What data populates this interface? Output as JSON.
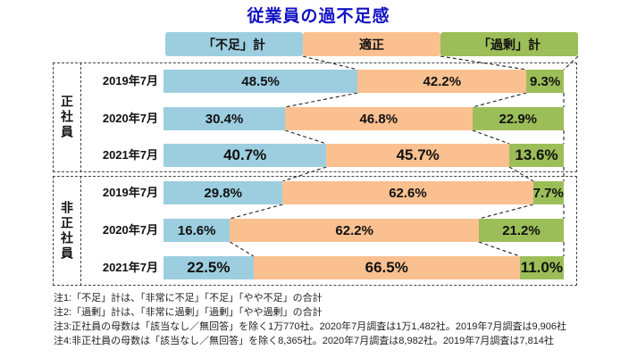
{
  "title": "従業員の過不足感",
  "colors": {
    "shortage": "#9CCEDF",
    "appropriate": "#FAC090",
    "surplus": "#9CBE58",
    "title_text": "#1212C4",
    "connector_line": "#222222"
  },
  "legend": [
    {
      "label": "「不足」計",
      "key": "shortage"
    },
    {
      "label": "適正",
      "key": "appropriate"
    },
    {
      "label": "「過剰」計",
      "key": "surplus"
    }
  ],
  "chart_data": {
    "type": "bar",
    "stacked": true,
    "orientation": "horizontal",
    "unit": "%",
    "xlim": [
      0,
      100
    ],
    "series": [
      "「不足」計",
      "適正",
      "「過剰」計"
    ],
    "title": "従業員の過不足感",
    "groups": [
      {
        "label": "正社員",
        "rows": [
          {
            "label": "2019年7月",
            "values": [
              48.5,
              42.2,
              9.3
            ],
            "value_labels": [
              "48.5%",
              "42.2%",
              "9.3%"
            ],
            "emphasis": false
          },
          {
            "label": "2020年7月",
            "values": [
              30.4,
              46.8,
              22.9
            ],
            "value_labels": [
              "30.4%",
              "46.8%",
              "22.9%"
            ],
            "emphasis": false
          },
          {
            "label": "2021年7月",
            "values": [
              40.7,
              45.7,
              13.6
            ],
            "value_labels": [
              "40.7%",
              "45.7%",
              "13.6%"
            ],
            "emphasis": true
          }
        ]
      },
      {
        "label": "非正社員",
        "rows": [
          {
            "label": "2019年7月",
            "values": [
              29.8,
              62.6,
              7.7
            ],
            "value_labels": [
              "29.8%",
              "62.6%",
              "7.7%"
            ],
            "emphasis": false
          },
          {
            "label": "2020年7月",
            "values": [
              16.6,
              62.2,
              21.2
            ],
            "value_labels": [
              "16.6%",
              "62.2%",
              "21.2%"
            ],
            "emphasis": false
          },
          {
            "label": "2021年7月",
            "values": [
              22.5,
              66.5,
              11.0
            ],
            "value_labels": [
              "22.5%",
              "66.5%",
              "11.0%"
            ],
            "emphasis": true
          }
        ]
      }
    ]
  },
  "notes": [
    "注1:「不足」計は、「非常に不足」「不足」「やや不足」の合計",
    "注2:「過剰」計は、「非常に過剰」「過剰」「やや過剰」の合計",
    "注3:正社員の母数は「該当なし／無回答」を除く1万770社。2020年7月調査は1万1,482社。2019年7月調査は9,906社",
    "注4:非正社員の母数は「該当なし／無回答」を除く8,365社。2020年7月調査は8,982社。2019年7月調査は7,814社"
  ]
}
